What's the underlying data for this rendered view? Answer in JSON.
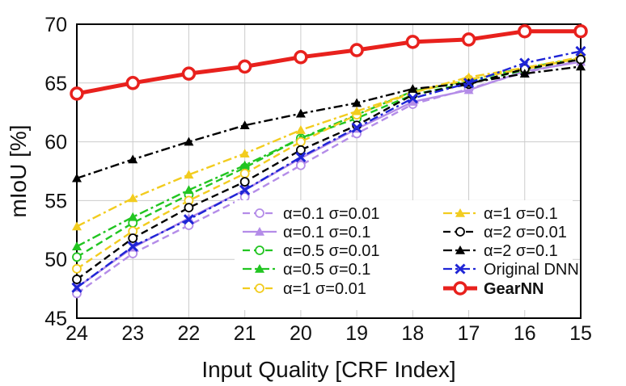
{
  "chart_data": {
    "type": "line",
    "xlabel": "Input Quality [CRF Index]",
    "ylabel": "mIoU [%]",
    "categories": [
      "24",
      "23",
      "22",
      "21",
      "20",
      "19",
      "18",
      "17",
      "16",
      "15"
    ],
    "ylim": [
      45,
      70
    ],
    "yticks": [
      "45",
      "50",
      "55",
      "60",
      "65",
      "70"
    ],
    "grid": true,
    "legend_position": "bottom-right",
    "series": [
      {
        "name": "α=0.1 σ=0.01",
        "color": "#b48ce8",
        "dash": "dashed",
        "marker": "open-circle",
        "values": [
          47.1,
          50.5,
          52.9,
          55.3,
          58.0,
          60.7,
          63.2,
          64.5,
          65.9,
          66.9
        ]
      },
      {
        "name": "α=0.1 σ=0.1",
        "color": "#b48ce8",
        "dash": "solid",
        "marker": "filled-triangle",
        "values": [
          47.6,
          51.0,
          53.5,
          55.9,
          58.6,
          61.1,
          63.4,
          64.4,
          66.0,
          66.8
        ]
      },
      {
        "name": "α=0.5 σ=0.01",
        "color": "#22c522",
        "dash": "dashed",
        "marker": "open-circle",
        "values": [
          50.2,
          53.1,
          55.5,
          57.8,
          60.3,
          62.0,
          64.0,
          65.0,
          66.1,
          67.1
        ]
      },
      {
        "name": "α=0.5 σ=0.1",
        "color": "#22c522",
        "dash": "dashdot",
        "marker": "filled-triangle",
        "values": [
          51.1,
          53.6,
          55.9,
          58.0,
          60.3,
          62.3,
          64.3,
          65.2,
          66.3,
          67.1
        ]
      },
      {
        "name": "α=1 σ=0.01",
        "color": "#f2cc1f",
        "dash": "dashed",
        "marker": "open-circle",
        "values": [
          49.2,
          52.4,
          55.0,
          57.3,
          60.0,
          62.3,
          64.2,
          65.3,
          66.2,
          67.1
        ]
      },
      {
        "name": "α=1 σ=0.1",
        "color": "#f2cc1f",
        "dash": "dashdot",
        "marker": "filled-triangle",
        "values": [
          52.8,
          55.2,
          57.2,
          59.0,
          61.0,
          62.6,
          64.2,
          65.5,
          66.3,
          67.2
        ]
      },
      {
        "name": "α=2 σ=0.01",
        "color": "#000000",
        "dash": "dashed",
        "marker": "open-circle",
        "values": [
          48.3,
          51.8,
          54.4,
          56.6,
          59.3,
          61.4,
          64.0,
          64.9,
          66.2,
          67.0
        ]
      },
      {
        "name": "α=2 σ=0.1",
        "color": "#000000",
        "dash": "dashdot",
        "marker": "filled-triangle",
        "values": [
          56.9,
          58.5,
          60.0,
          61.4,
          62.4,
          63.3,
          64.5,
          65.0,
          65.8,
          66.4
        ]
      },
      {
        "name": "Original DNN",
        "color": "#1f25d6",
        "dash": "dashdot",
        "marker": "x",
        "values": [
          47.6,
          51.1,
          53.4,
          55.9,
          58.7,
          61.2,
          63.7,
          65.0,
          66.7,
          67.7
        ]
      },
      {
        "name": "GearNN",
        "color": "#e8211d",
        "dash": "solid",
        "marker": "open-circle-thick",
        "bold": true,
        "values": [
          64.1,
          65.0,
          65.8,
          66.4,
          67.2,
          67.8,
          68.5,
          68.7,
          69.4,
          69.4
        ]
      }
    ]
  }
}
